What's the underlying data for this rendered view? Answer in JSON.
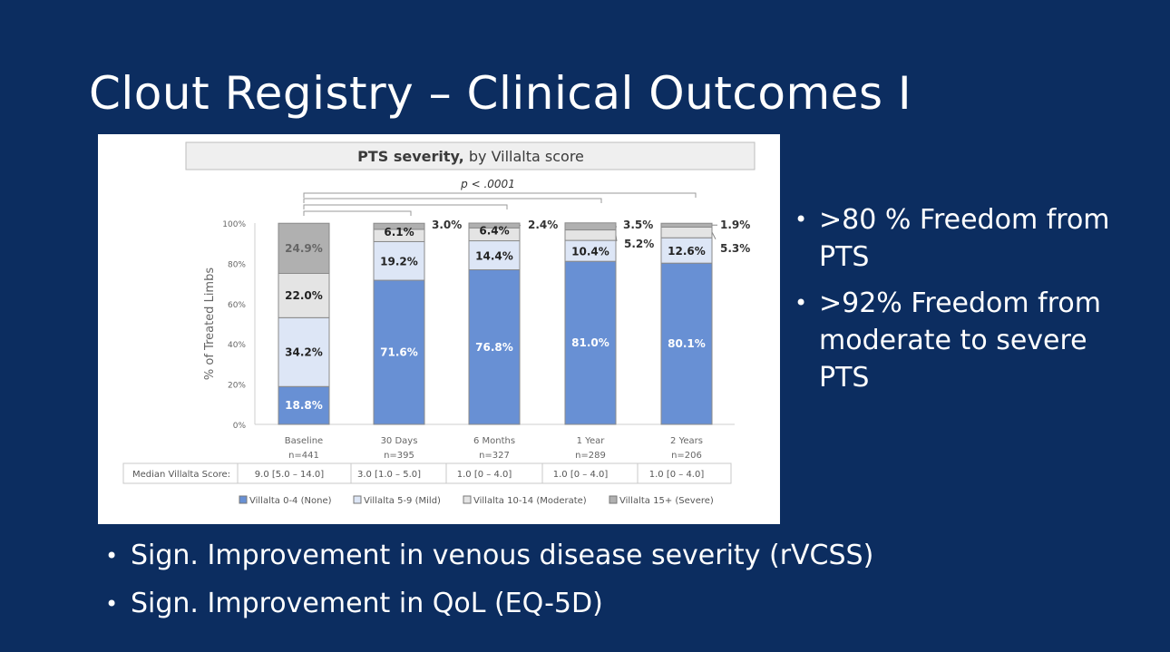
{
  "slide": {
    "title": "Clout Registry – Clinical Outcomes I",
    "bullets_right": [
      ">80 % Freedom from PTS",
      ">92% Freedom from moderate to severe PTS"
    ],
    "bullets_bottom": [
      "Sign. Improvement in venous disease severity (rVCSS)",
      "Sign. Improvement in QoL (EQ-5D)"
    ]
  },
  "chart_data": {
    "type": "bar",
    "stacked": true,
    "title_bold": "PTS severity,",
    "title_rest": " by Villalta score",
    "pvalue": "p < .0001",
    "ylabel": "% of Treated Limbs",
    "ylim": [
      0,
      100
    ],
    "yticks": [
      "0%",
      "20%",
      "40%",
      "60%",
      "80%",
      "100%"
    ],
    "categories": [
      "Baseline",
      "30 Days",
      "6 Months",
      "1 Year",
      "2 Years"
    ],
    "n_labels": [
      "n=441",
      "n=395",
      "n=327",
      "n=289",
      "n=206"
    ],
    "series": [
      {
        "name": "Villalta 0-4 (None)",
        "values": [
          18.8,
          71.6,
          76.8,
          81.0,
          80.1
        ],
        "labels": [
          "18.8%",
          "71.6%",
          "76.8%",
          "81.0%",
          "80.1%"
        ],
        "color": "#6890d4"
      },
      {
        "name": "Villalta 5-9 (Mild)",
        "values": [
          34.2,
          19.2,
          14.4,
          10.4,
          12.6
        ],
        "labels": [
          "34.2%",
          "19.2%",
          "14.4%",
          "10.4%",
          "12.6%"
        ],
        "color": "#dde6f6"
      },
      {
        "name": "Villalta 10-14 (Moderate)",
        "values": [
          22.0,
          6.1,
          6.4,
          5.2,
          5.3
        ],
        "labels": [
          "22.0%",
          "6.1%",
          "6.4%",
          "5.2%",
          "5.3%"
        ],
        "color": "#e4e4e4"
      },
      {
        "name": "Villalta 15+ (Severe)",
        "values": [
          24.9,
          3.0,
          2.4,
          3.5,
          1.9
        ],
        "labels": [
          "24.9%",
          "3.0%",
          "2.4%",
          "3.5%",
          "1.9%"
        ],
        "color": "#b0b0b0"
      }
    ],
    "median_row_label": "Median Villalta Score:",
    "median_values": [
      "9.0 [5.0 – 14.0]",
      "3.0 [1.0 – 5.0]",
      "1.0 [0 – 4.0]",
      "1.0 [0 – 4.0]",
      "1.0 [0 – 4.0]"
    ]
  }
}
